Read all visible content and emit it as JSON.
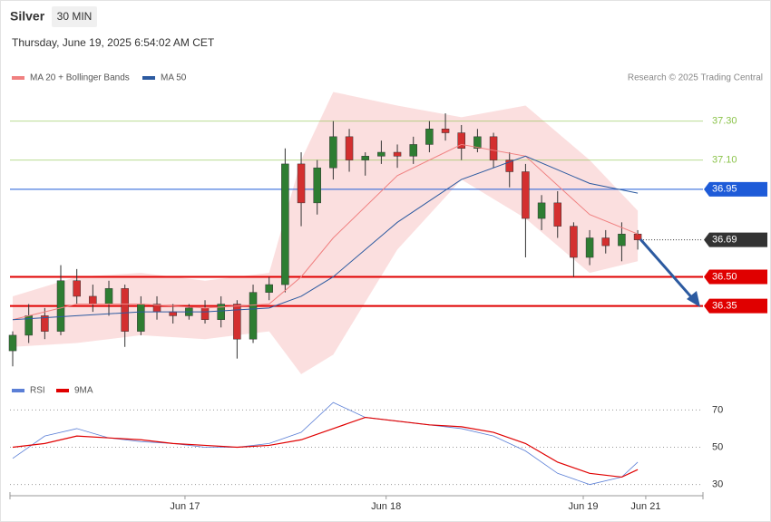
{
  "header": {
    "title": "Silver",
    "interval": "30 MIN",
    "datetime": "Thursday, June 19, 2025 6:54:02 AM CET",
    "credit": "Research © 2025 Trading Central"
  },
  "chart_data": [
    {
      "type": "candlestick",
      "xlim": [
        -0.17,
        43.07
      ],
      "ylim": [
        35.99,
        37.48
      ],
      "up_color": "#2e7d32",
      "down_color": "#d32f2f",
      "candles": [
        [
          36.12,
          36.22,
          36.04,
          36.2
        ],
        [
          36.2,
          36.36,
          36.16,
          36.3
        ],
        [
          36.3,
          36.34,
          36.18,
          36.22
        ],
        [
          36.22,
          36.56,
          36.2,
          36.48
        ],
        [
          36.48,
          36.54,
          36.36,
          36.4
        ],
        [
          36.4,
          36.46,
          36.32,
          36.36
        ],
        [
          36.36,
          36.48,
          36.3,
          36.44
        ],
        [
          36.44,
          36.46,
          36.14,
          36.22
        ],
        [
          36.22,
          36.4,
          36.2,
          36.36
        ],
        [
          36.36,
          36.4,
          36.28,
          36.32
        ],
        [
          36.32,
          36.36,
          36.26,
          36.3
        ],
        [
          36.3,
          36.36,
          36.28,
          36.34
        ],
        [
          36.34,
          36.38,
          36.26,
          36.28
        ],
        [
          36.28,
          36.4,
          36.24,
          36.36
        ],
        [
          36.36,
          36.38,
          36.08,
          36.18
        ],
        [
          36.18,
          36.46,
          36.16,
          36.42
        ],
        [
          36.42,
          36.5,
          36.38,
          36.46
        ],
        [
          36.46,
          37.16,
          36.42,
          37.08
        ],
        [
          37.08,
          37.14,
          36.76,
          36.88
        ],
        [
          36.88,
          37.1,
          36.82,
          37.06
        ],
        [
          37.06,
          37.3,
          37.0,
          37.22
        ],
        [
          37.22,
          37.26,
          37.04,
          37.1
        ],
        [
          37.1,
          37.14,
          37.02,
          37.12
        ],
        [
          37.12,
          37.2,
          37.08,
          37.14
        ],
        [
          37.14,
          37.18,
          37.06,
          37.12
        ],
        [
          37.12,
          37.22,
          37.08,
          37.18
        ],
        [
          37.18,
          37.3,
          37.14,
          37.26
        ],
        [
          37.26,
          37.34,
          37.2,
          37.24
        ],
        [
          37.24,
          37.28,
          37.1,
          37.16
        ],
        [
          37.16,
          37.26,
          37.14,
          37.22
        ],
        [
          37.22,
          37.24,
          37.06,
          37.1
        ],
        [
          37.1,
          37.14,
          36.96,
          37.04
        ],
        [
          37.04,
          37.08,
          36.6,
          36.8
        ],
        [
          36.8,
          36.92,
          36.74,
          36.88
        ],
        [
          36.88,
          36.94,
          36.7,
          36.76
        ],
        [
          36.76,
          36.78,
          36.5,
          36.6
        ],
        [
          36.6,
          36.74,
          36.56,
          36.7
        ],
        [
          36.7,
          36.74,
          36.62,
          36.66
        ],
        [
          36.66,
          36.78,
          36.58,
          36.72
        ],
        [
          36.72,
          36.74,
          36.64,
          36.69
        ]
      ],
      "line_x": [
        0,
        4,
        8,
        12,
        16,
        18,
        20,
        24,
        28,
        32,
        36,
        39
      ],
      "bands": {
        "name": "MA 20 + Bollinger Bands",
        "color": "#f08080",
        "upper": [
          36.4,
          36.5,
          36.52,
          36.48,
          36.52,
          37.1,
          37.45,
          37.38,
          37.32,
          37.38,
          37.1,
          36.84
        ],
        "lower": [
          36.14,
          36.16,
          36.2,
          36.18,
          36.22,
          36.0,
          36.1,
          36.64,
          37.0,
          36.8,
          36.52,
          36.58
        ]
      },
      "series": [
        {
          "name": "MA 20 + Bollinger Bands",
          "color": "#f08080",
          "values": [
            36.28,
            36.36,
            36.36,
            36.34,
            36.36,
            36.5,
            36.7,
            37.02,
            37.18,
            37.12,
            36.82,
            36.72
          ]
        },
        {
          "name": "MA 50",
          "color": "#2c5aa0",
          "values": [
            36.28,
            36.3,
            36.32,
            36.32,
            36.34,
            36.4,
            36.5,
            36.78,
            37.0,
            37.12,
            36.98,
            36.93
          ]
        }
      ],
      "levels": [
        {
          "value": 37.3,
          "label": "37.30",
          "color": "#8bc34a",
          "style": "text"
        },
        {
          "value": 37.1,
          "label": "37.10",
          "color": "#8bc34a",
          "style": "text"
        },
        {
          "value": 36.95,
          "label": "36.95",
          "color": "#1e5bd8",
          "style": "box"
        },
        {
          "value": 36.69,
          "label": "36.69",
          "color": "#333333",
          "style": "current"
        },
        {
          "value": 36.5,
          "label": "36.50",
          "color": "#e00000",
          "style": "box"
        },
        {
          "value": 36.35,
          "label": "36.35",
          "color": "#e00000",
          "style": "box"
        }
      ]
    },
    {
      "type": "line",
      "xlim": [
        -0.17,
        43.07
      ],
      "ylim": [
        24,
        76
      ],
      "yticks": [
        30,
        50,
        70
      ],
      "xticks": [
        {
          "value": 10.75,
          "label": "Jun 17"
        },
        {
          "value": 23.3,
          "label": "Jun 18"
        },
        {
          "value": 35.6,
          "label": "Jun 19"
        },
        {
          "value": 39.5,
          "label": "Jun 21"
        }
      ],
      "x": [
        0,
        2,
        4,
        6,
        8,
        10,
        12,
        14,
        16,
        18,
        20,
        22,
        24,
        26,
        28,
        30,
        32,
        34,
        36,
        38,
        39
      ],
      "series": [
        {
          "name": "RSI",
          "color": "#5b7fd6",
          "values": [
            44,
            56,
            60,
            55,
            53,
            52,
            50,
            50,
            52,
            58,
            74,
            66,
            64,
            62,
            60,
            56,
            48,
            36,
            30,
            34,
            42
          ]
        },
        {
          "name": "9MA",
          "color": "#e00000",
          "values": [
            50,
            52,
            56,
            55,
            54,
            52,
            51,
            50,
            51,
            54,
            60,
            66,
            64,
            62,
            61,
            58,
            52,
            42,
            36,
            34,
            38
          ]
        }
      ]
    }
  ]
}
